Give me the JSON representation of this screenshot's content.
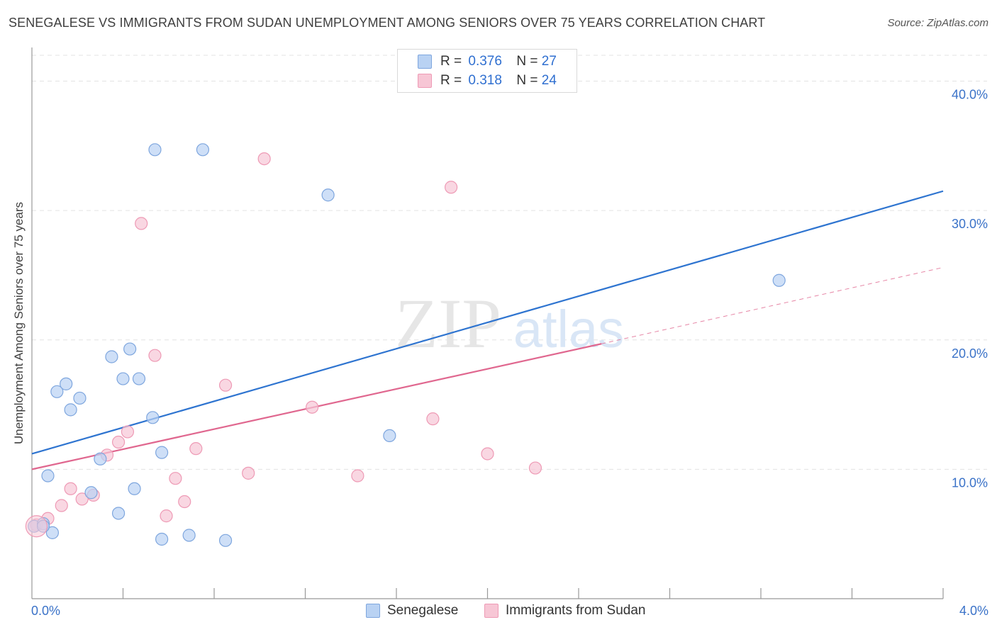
{
  "title": "SENEGALESE VS IMMIGRANTS FROM SUDAN UNEMPLOYMENT AMONG SENIORS OVER 75 YEARS CORRELATION CHART",
  "source": "Source: ZipAtlas.com",
  "watermark": {
    "zip": "ZIP",
    "atlas": "atlas"
  },
  "legend": {
    "rows": [
      {
        "r_label": "R =",
        "r_value": "0.376",
        "n_label": "N =",
        "n_value": "27"
      },
      {
        "r_label": "R =",
        "r_value": "0.318",
        "n_label": "N =",
        "n_value": "24"
      }
    ]
  },
  "colors": {
    "blue_fill": "#b9d2f3",
    "blue_stroke": "#7ea6de",
    "blue_line": "#2e74d0",
    "pink_fill": "#f7c6d5",
    "pink_stroke": "#ee9ab5",
    "pink_line": "#e0678f",
    "grid": "#e3e3e3",
    "axis_label": "#3a72c8"
  },
  "chart_data": {
    "type": "scatter",
    "title": "SENEGALESE VS IMMIGRANTS FROM SUDAN UNEMPLOYMENT AMONG SENIORS OVER 75 YEARS CORRELATION CHART",
    "xlabel": "",
    "ylabel": "Unemployment Among Seniors over 75 years",
    "xlim": [
      0,
      4.0
    ],
    "ylim": [
      0,
      42
    ],
    "x_tick_labels": [
      "0.0%",
      "4.0%"
    ],
    "y_ticks": [
      10,
      20,
      30,
      40
    ],
    "y_tick_labels": [
      "10.0%",
      "20.0%",
      "30.0%",
      "40.0%"
    ],
    "grid": true,
    "series": [
      {
        "name": "Senegalese",
        "color": "blue",
        "points": [
          [
            0.01,
            5.6
          ],
          [
            0.05,
            5.8
          ],
          [
            0.09,
            5.1
          ],
          [
            0.07,
            9.5
          ],
          [
            0.11,
            16.0
          ],
          [
            0.15,
            16.6
          ],
          [
            0.17,
            14.6
          ],
          [
            0.21,
            15.5
          ],
          [
            0.3,
            10.8
          ],
          [
            0.26,
            8.2
          ],
          [
            0.35,
            18.7
          ],
          [
            0.4,
            17.0
          ],
          [
            0.43,
            19.3
          ],
          [
            0.47,
            17.0
          ],
          [
            0.38,
            6.6
          ],
          [
            0.45,
            8.5
          ],
          [
            0.53,
            14.0
          ],
          [
            0.57,
            11.3
          ],
          [
            0.54,
            34.7
          ],
          [
            0.57,
            4.6
          ],
          [
            0.69,
            4.9
          ],
          [
            0.75,
            34.7
          ],
          [
            0.85,
            4.5
          ],
          [
            1.3,
            31.2
          ],
          [
            1.57,
            12.6
          ],
          [
            3.28,
            24.6
          ],
          [
            0.05,
            5.6
          ]
        ],
        "trend": {
          "x": [
            0.0,
            4.0
          ],
          "y": [
            11.2,
            31.5
          ]
        }
      },
      {
        "name": "Immigrants from Sudan",
        "color": "pink",
        "points": [
          [
            0.02,
            5.7
          ],
          [
            0.07,
            6.2
          ],
          [
            0.13,
            7.2
          ],
          [
            0.17,
            8.5
          ],
          [
            0.22,
            7.7
          ],
          [
            0.27,
            8.0
          ],
          [
            0.33,
            11.1
          ],
          [
            0.38,
            12.1
          ],
          [
            0.42,
            12.9
          ],
          [
            0.48,
            29.0
          ],
          [
            0.54,
            18.8
          ],
          [
            0.59,
            6.4
          ],
          [
            0.63,
            9.3
          ],
          [
            0.67,
            7.5
          ],
          [
            0.72,
            11.6
          ],
          [
            0.85,
            16.5
          ],
          [
            0.95,
            9.7
          ],
          [
            1.02,
            34.0
          ],
          [
            1.23,
            14.8
          ],
          [
            1.43,
            9.5
          ],
          [
            1.76,
            13.9
          ],
          [
            1.84,
            31.8
          ],
          [
            2.0,
            11.2
          ],
          [
            2.21,
            10.1
          ]
        ],
        "trend": {
          "x": [
            0.0,
            2.5
          ],
          "y": [
            10.0,
            19.7
          ]
        },
        "trend_extension": {
          "x": [
            2.5,
            4.0
          ],
          "y": [
            19.7,
            25.6
          ]
        }
      }
    ]
  },
  "bottom_legend": [
    {
      "label": "Senegalese",
      "color": "blue"
    },
    {
      "label": "Immigrants from Sudan",
      "color": "pink"
    }
  ]
}
